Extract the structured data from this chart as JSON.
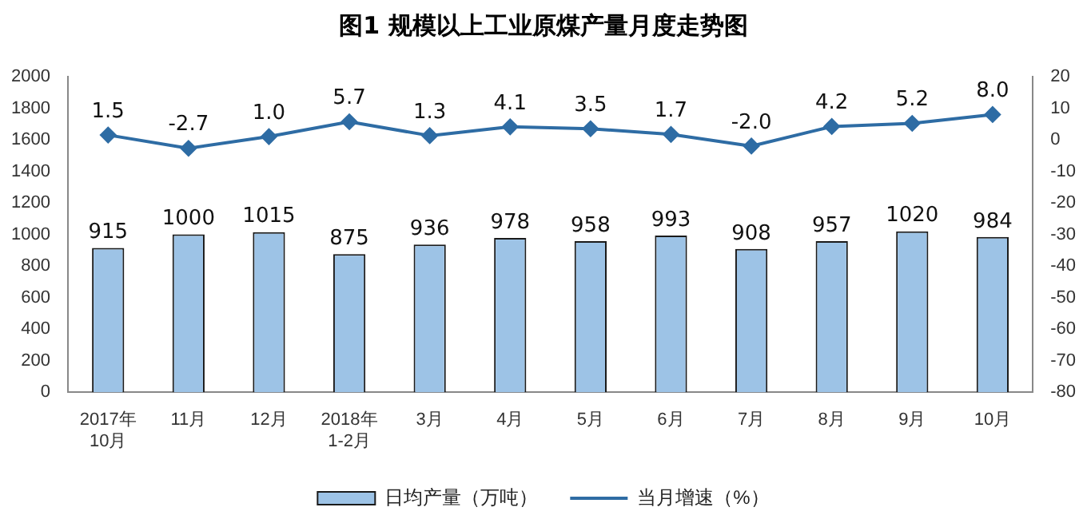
{
  "chart_data": {
    "type": "bar",
    "title": "图1  规模以上工业原煤产量月度走势图",
    "categories": [
      "2017年\n10月",
      "11月",
      "12月",
      "2018年\n1-2月",
      "3月",
      "4月",
      "5月",
      "6月",
      "7月",
      "8月",
      "9月",
      "10月"
    ],
    "series": [
      {
        "name": "日均产量（万吨）",
        "color": "#9dc3e6",
        "values": [
          915,
          1000,
          1015,
          875,
          936,
          978,
          958,
          993,
          908,
          957,
          1020,
          984
        ]
      },
      {
        "name": "当月增速（%）",
        "type": "line",
        "axis": "y2",
        "color": "#2e6ca4",
        "marker": "diamond",
        "values": [
          1.5,
          -2.7,
          1.0,
          5.7,
          1.3,
          4.1,
          3.5,
          1.7,
          -2.0,
          4.2,
          5.2,
          8.0
        ],
        "value_labels": [
          "1.5",
          "-2.7",
          "1.0",
          "5.7",
          "1.3",
          "4.1",
          "3.5",
          "1.7",
          "-2.0",
          "4.2",
          "5.2",
          "8.0"
        ]
      }
    ],
    "ylim": [
      0,
      2000
    ],
    "yticks": [
      0,
      200,
      400,
      600,
      800,
      1000,
      1200,
      1400,
      1600,
      1800,
      2000
    ],
    "y2lim": [
      -80,
      20
    ],
    "y2ticks": [
      -80,
      -70,
      -60,
      -50,
      -40,
      -30,
      -20,
      -10,
      0,
      10,
      20
    ],
    "data_labels": true,
    "grid": false,
    "legend": "bottom"
  }
}
